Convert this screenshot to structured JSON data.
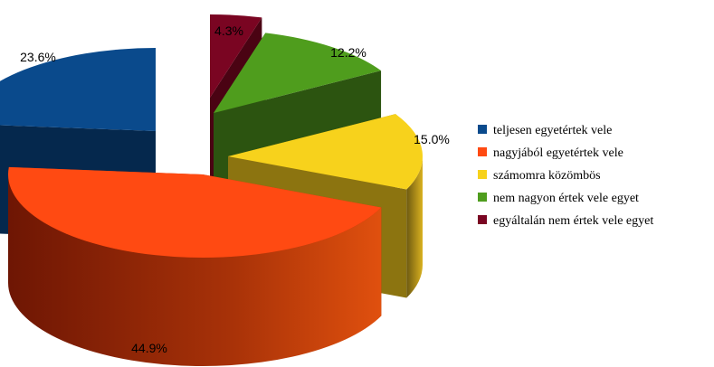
{
  "chart_data": {
    "type": "pie",
    "three_d": true,
    "exploded": true,
    "legend_position": "right",
    "slices": [
      {
        "name": "teljesen egyetértek vele",
        "value": 23.6,
        "label": "23.6%",
        "color": "#0a4a8c"
      },
      {
        "name": "nagyjából egyetértek vele",
        "value": 44.9,
        "label": "44.9%",
        "color": "#ff4a12"
      },
      {
        "name": "számomra közömbös",
        "value": 15.0,
        "label": "15.0%",
        "color": "#f7d21c"
      },
      {
        "name": "nem nagyon értek vele egyet",
        "value": 12.2,
        "label": "12.2%",
        "color": "#4f9d1d"
      },
      {
        "name": "egyáltalán nem értek vele egyet",
        "value": 4.3,
        "label": "4.3%",
        "color": "#7a0522"
      }
    ]
  }
}
